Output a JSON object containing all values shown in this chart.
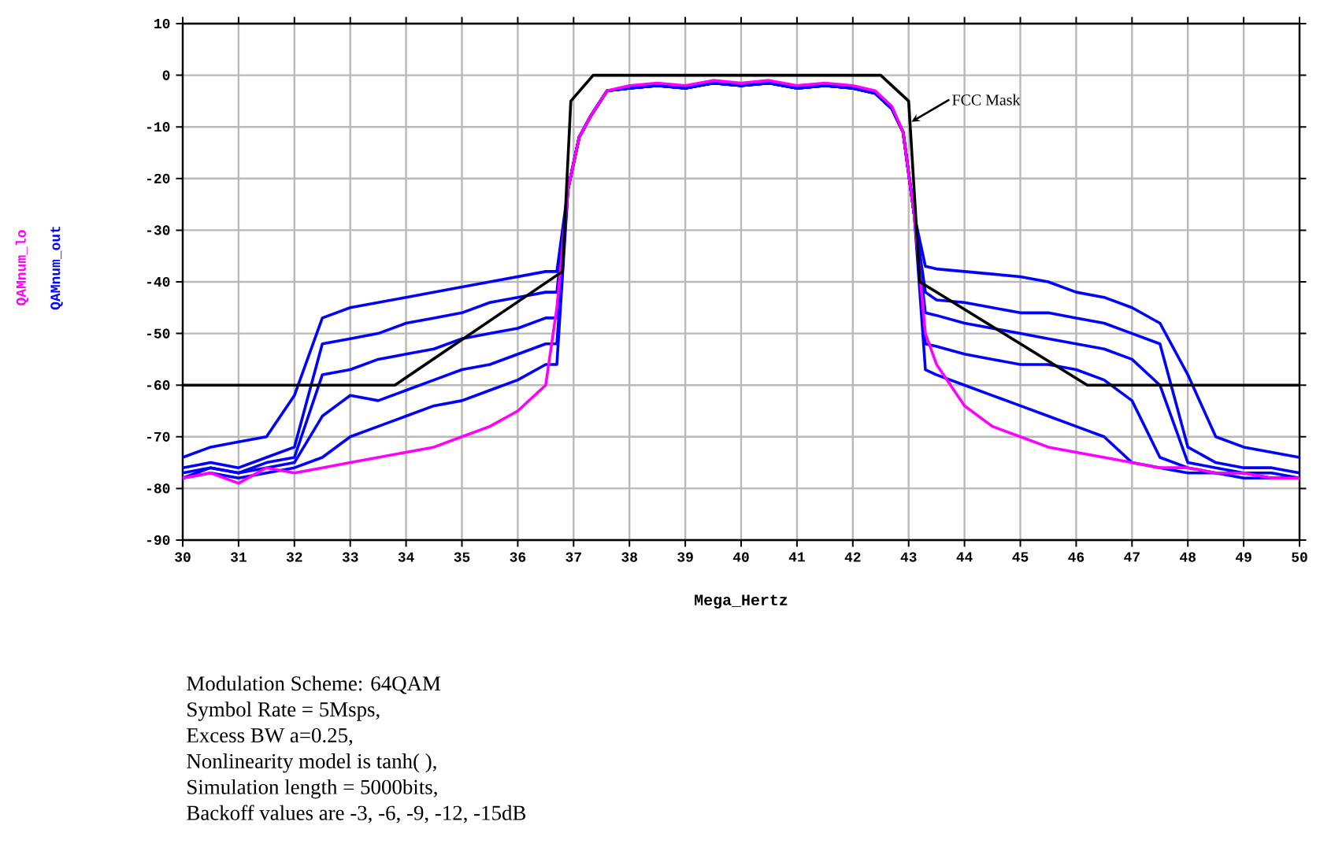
{
  "chart_data": {
    "type": "line",
    "xlabel": "Mega_Hertz",
    "x": [
      30,
      30.5,
      31,
      31.5,
      32,
      32.5,
      33,
      33.5,
      34,
      34.5,
      35,
      35.5,
      36,
      36.5,
      36.7,
      36.9,
      37.1,
      37.3,
      37.6,
      38,
      38.5,
      39,
      39.5,
      40,
      40.5,
      41,
      41.5,
      42,
      42.4,
      42.7,
      42.9,
      43.1,
      43.3,
      43.5,
      44,
      44.5,
      45,
      45.5,
      46,
      46.5,
      47,
      47.5,
      48,
      48.5,
      49,
      49.5,
      50
    ],
    "series": [
      {
        "color": "#0000ff",
        "values": [
          -78,
          -77,
          -78,
          -77,
          -76,
          -74,
          -70,
          -68,
          -66,
          -64,
          -63,
          -61,
          -59,
          -56,
          -56,
          -22,
          -12,
          -8,
          -3,
          -2.5,
          -2,
          -2.5,
          -1.5,
          -2,
          -1.5,
          -2.5,
          -2,
          -2.5,
          -3.5,
          -6.5,
          -11,
          -27,
          -57,
          -58,
          -60,
          -62,
          -64,
          -66,
          -68,
          -70,
          -75,
          -76,
          -77,
          -77,
          -78,
          -78,
          -78
        ]
      },
      {
        "color": "#0000ff",
        "values": [
          -78,
          -76,
          -77,
          -76,
          -75,
          -66,
          -62,
          -63,
          -61,
          -59,
          -57,
          -56,
          -54,
          -52,
          -52,
          -22,
          -12,
          -8,
          -3,
          -2.5,
          -2,
          -2.5,
          -1.5,
          -2,
          -1.5,
          -2.5,
          -2,
          -2.5,
          -3.5,
          -6.5,
          -11,
          -27,
          -52,
          -52.5,
          -54,
          -55,
          -56,
          -56,
          -57,
          -59,
          -63,
          -74,
          -76,
          -77,
          -77,
          -78,
          -78
        ]
      },
      {
        "color": "#0000ff",
        "values": [
          -77,
          -76,
          -77,
          -75,
          -74,
          -58,
          -57,
          -55,
          -54,
          -53,
          -51,
          -50,
          -49,
          -47,
          -47,
          -22,
          -12,
          -8,
          -3,
          -2.5,
          -2,
          -2.5,
          -1.5,
          -2,
          -1.5,
          -2.5,
          -2,
          -2.5,
          -3.5,
          -6.5,
          -11,
          -27,
          -46,
          -46.5,
          -48,
          -49,
          -50,
          -51,
          -52,
          -53,
          -55,
          -60,
          -75,
          -76,
          -77,
          -77,
          -78
        ]
      },
      {
        "color": "#0000ff",
        "values": [
          -76,
          -75,
          -76,
          -74,
          -72,
          -52,
          -51,
          -50,
          -48,
          -47,
          -46,
          -44,
          -43,
          -42,
          -42,
          -22,
          -12,
          -8,
          -3,
          -2.5,
          -2,
          -2.5,
          -1.5,
          -2,
          -1.5,
          -2.5,
          -2,
          -2.5,
          -3.5,
          -6.5,
          -11,
          -27,
          -42,
          -43.5,
          -44,
          -45,
          -46,
          -46,
          -47,
          -48,
          -50,
          -52,
          -72,
          -75,
          -76,
          -76,
          -77
        ]
      },
      {
        "name": "QAMnum_out",
        "color": "#0000ff",
        "values": [
          -74,
          -72,
          -71,
          -70,
          -62,
          -47,
          -45,
          -44,
          -43,
          -42,
          -41,
          -40,
          -39,
          -38,
          -38,
          -22,
          -12,
          -8,
          -3,
          -2.5,
          -2,
          -2.5,
          -1.5,
          -2,
          -1.5,
          -2.5,
          -2,
          -2.5,
          -3.5,
          -6.5,
          -11,
          -27,
          -37,
          -37.5,
          -38,
          -38.5,
          -39,
          -40,
          -42,
          -43,
          -45,
          -48,
          -58,
          -70,
          -72,
          -73,
          -74
        ]
      },
      {
        "name": "QAMnum_lo",
        "color": "#ff00ff",
        "values": [
          -78,
          -77,
          -79,
          -76,
          -77,
          -76,
          -75,
          -74,
          -73,
          -72,
          -70,
          -68,
          -65,
          -60,
          -45,
          -22,
          -12,
          -8,
          -3,
          -2,
          -1.5,
          -2,
          -1,
          -1.5,
          -1,
          -2,
          -1.5,
          -2,
          -3,
          -6,
          -11,
          -27,
          -50,
          -56,
          -64,
          -68,
          -70,
          -72,
          -73,
          -74,
          -75,
          -76,
          -76,
          -77,
          -77,
          -78,
          -78
        ]
      },
      {
        "color": "#000000",
        "x": [
          30,
          33.8,
          36.8,
          36.95,
          37.35,
          42.5,
          43.0,
          43.2,
          46.2,
          50
        ],
        "values": [
          -60,
          -60,
          -38,
          -5,
          0,
          0,
          -5,
          -40,
          -60,
          -60
        ]
      }
    ],
    "xlim": [
      30,
      50
    ],
    "ylim": [
      -90,
      10
    ],
    "xticks": [
      30,
      31,
      32,
      33,
      34,
      35,
      36,
      37,
      38,
      39,
      40,
      41,
      42,
      43,
      44,
      45,
      46,
      47,
      48,
      49,
      50
    ],
    "yticks": [
      -90,
      -80,
      -70,
      -60,
      -50,
      -40,
      -30,
      -20,
      -10,
      0,
      10
    ],
    "grid": true,
    "marker": "none",
    "line_style": "solid",
    "annotations": [
      {
        "text": "FCC Mask",
        "x": 43.05,
        "y": -9
      },
      "Modulation Scheme: 64QAM",
      "Symbol Rate = 5Msps,",
      "Excess BW  a=0.25,",
      "Nonlinearity model is tanh( ),",
      "Simulation length = 5000bits,",
      "Backoff values are -3, -6, -9, -12, -15dB"
    ]
  }
}
